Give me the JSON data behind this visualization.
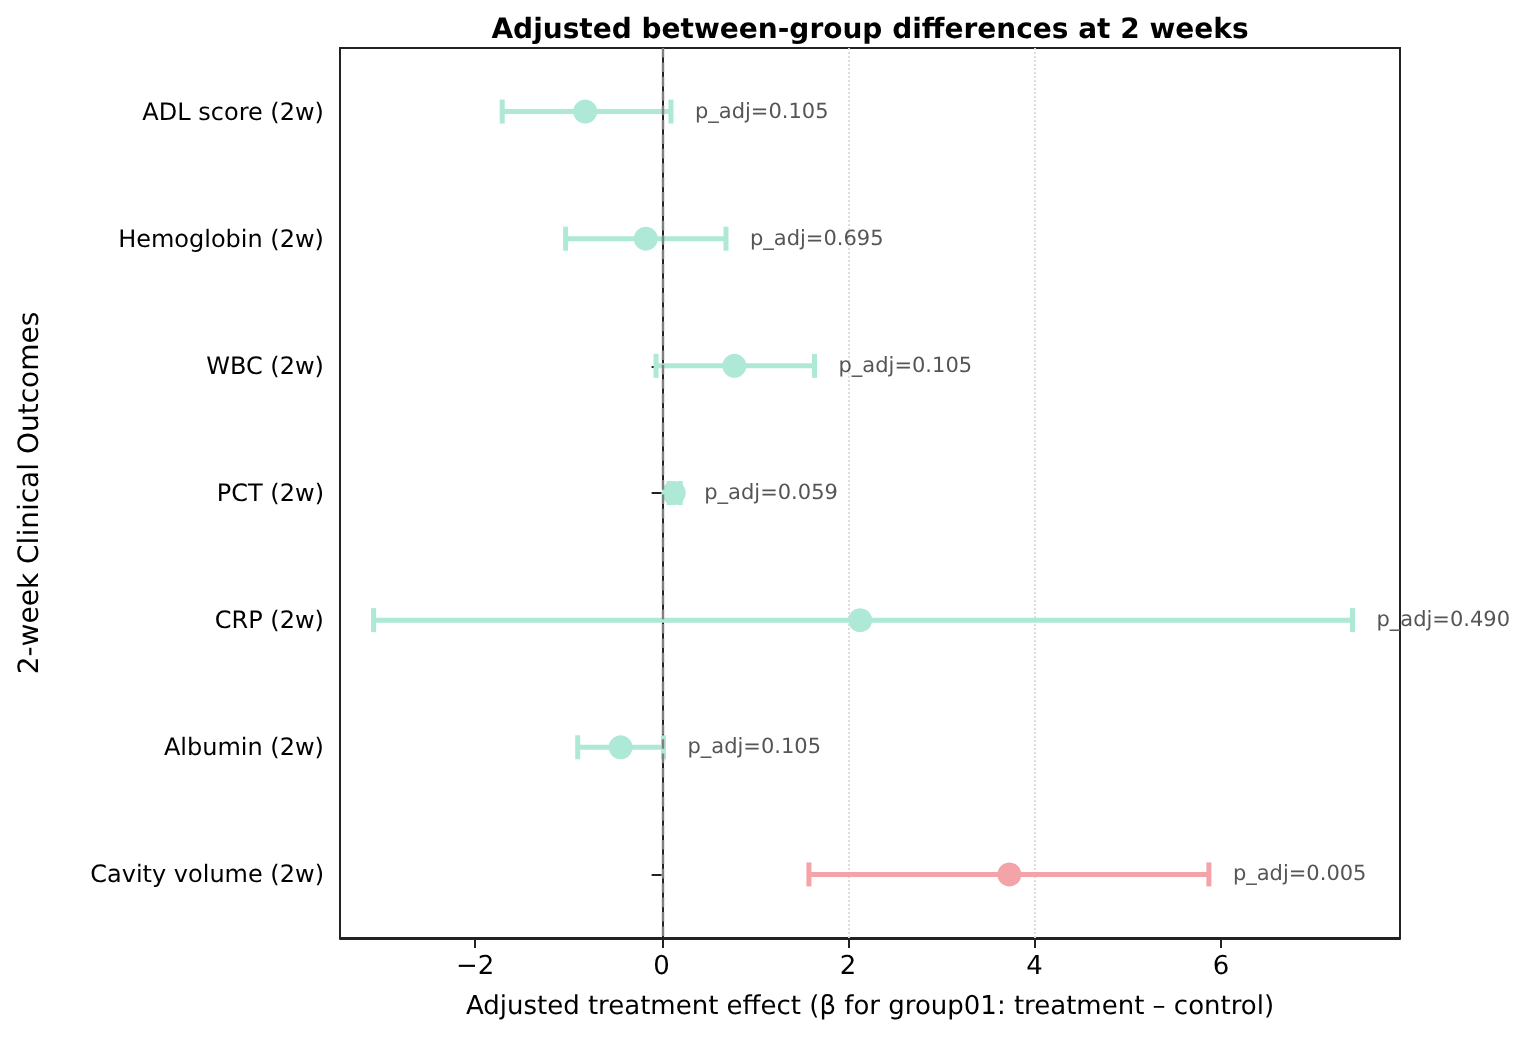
{
  "chart_data": {
    "type": "scatter",
    "orientation": "horizontal",
    "title": "Adjusted between-group differences at 2 weeks",
    "xlabel": "Adjusted treatment effect (β for group01: treatment – control)",
    "ylabel": "2-week Clinical Outcomes",
    "categories": [
      "ADL score (2w)",
      "Hemoglobin (2w)",
      "WBC (2w)",
      "PCT (2w)",
      "CRP (2w)",
      "Albumin (2w)",
      "Cavity volume (2w)"
    ],
    "values": [
      -0.82,
      -0.17,
      0.78,
      0.13,
      2.13,
      -0.44,
      3.73
    ],
    "errors": [
      [
        -1.71,
        0.1
      ],
      [
        -1.03,
        0.69
      ],
      [
        -0.06,
        1.64
      ],
      [
        0.08,
        0.2
      ],
      [
        -3.09,
        7.41
      ],
      [
        -0.9,
        0.02
      ],
      [
        1.58,
        5.87
      ]
    ],
    "colors": [
      "#aee8d6",
      "#aee8d6",
      "#aee8d6",
      "#aee8d6",
      "#aee8d6",
      "#aee8d6",
      "#f4a3a8"
    ],
    "xlim": [
      -3.45,
      7.92
    ],
    "xticks": [
      -2,
      0,
      2,
      4,
      6
    ],
    "grid": "x",
    "marker": "circle",
    "ref_lines": [
      {
        "axis": "x",
        "value": 0,
        "color": "#808080",
        "line_style": "dashed"
      }
    ],
    "annotations": [
      "p_adj=0.105",
      "p_adj=0.695",
      "p_adj=0.105",
      "p_adj=0.059",
      "p_adj=0.490",
      "p_adj=0.105",
      "p_adj=0.005"
    ]
  }
}
